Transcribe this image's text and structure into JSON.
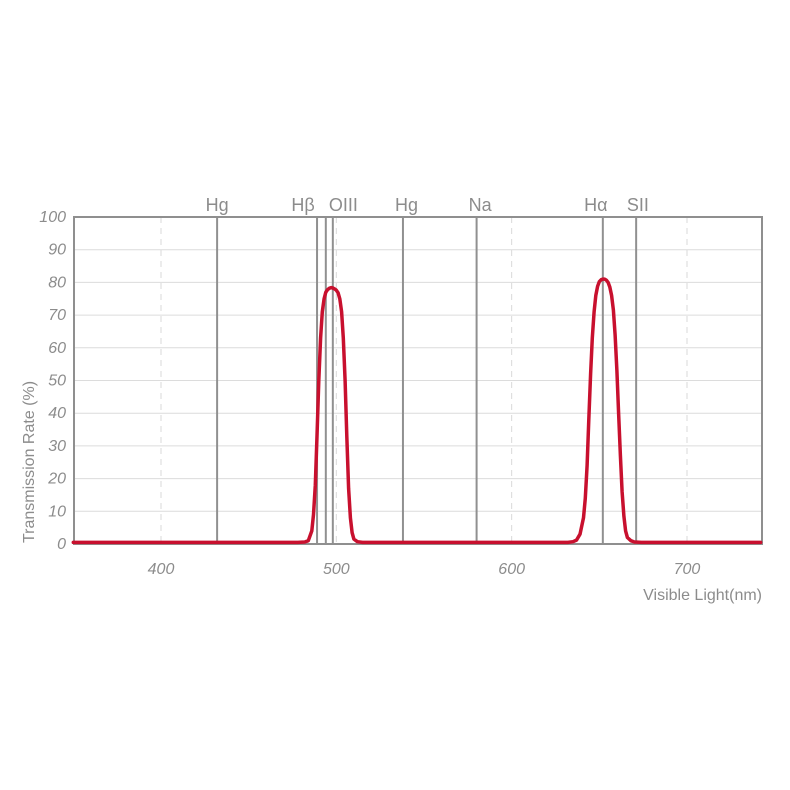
{
  "chart_data": {
    "type": "line",
    "title": "",
    "xlabel": "Visible Light(nm)",
    "ylabel": "Transmission Rate (%)",
    "xlim": [
      350,
      742
    ],
    "ylim": [
      0,
      100
    ],
    "x_ticks": [
      400,
      500,
      600,
      700
    ],
    "y_ticks": [
      0,
      10,
      20,
      30,
      40,
      50,
      60,
      70,
      80,
      90,
      100
    ],
    "grid": "on",
    "legend": "none",
    "colors": {
      "curve": "#c8102e",
      "axis_border": "#8f8f8f",
      "emission_line": "#909090",
      "gridline": "#dcdcdc",
      "dashed_gridline": "#d9d9d9",
      "text": "#8c8c8c",
      "background": "#ffffff"
    },
    "emission_lines": [
      {
        "label": "Hg",
        "lines_nm": [
          432
        ],
        "label_nm": 432
      },
      {
        "label": "Hβ",
        "lines_nm": [
          489
        ],
        "label_nm": 481
      },
      {
        "label": "OIII",
        "lines_nm": [
          494,
          498
        ],
        "label_nm": 504
      },
      {
        "label": "Hg",
        "lines_nm": [
          538
        ],
        "label_nm": 540
      },
      {
        "label": "Na",
        "lines_nm": [
          580
        ],
        "label_nm": 582
      },
      {
        "label": "Hα",
        "lines_nm": [
          652
        ],
        "label_nm": 648
      },
      {
        "label": "SII",
        "lines_nm": [
          671
        ],
        "label_nm": 672
      }
    ],
    "bands": [
      {
        "name": "OIII passband",
        "center_nm": 497,
        "peak_transmission_pct": 78,
        "approx_base_nm": [
          484,
          510
        ]
      },
      {
        "name": "Hα passband",
        "center_nm": 652,
        "peak_transmission_pct": 81,
        "approx_base_nm": [
          637,
          668
        ]
      }
    ],
    "series": [
      {
        "name": "transmission",
        "color": "#c8102e",
        "points": [
          [
            350,
            0.5
          ],
          [
            420,
            0.5
          ],
          [
            460,
            0.5
          ],
          [
            478,
            0.5
          ],
          [
            482,
            0.6
          ],
          [
            484,
            1
          ],
          [
            486,
            4
          ],
          [
            487,
            9
          ],
          [
            488,
            18
          ],
          [
            489,
            33
          ],
          [
            490,
            50
          ],
          [
            491,
            63
          ],
          [
            492,
            71
          ],
          [
            493,
            75
          ],
          [
            494,
            77
          ],
          [
            495,
            77.8
          ],
          [
            496,
            78.2
          ],
          [
            497,
            78.4
          ],
          [
            498,
            78.3
          ],
          [
            499,
            78
          ],
          [
            500,
            77.6
          ],
          [
            501,
            76.8
          ],
          [
            502,
            75
          ],
          [
            503,
            71
          ],
          [
            504,
            63
          ],
          [
            505,
            50
          ],
          [
            506,
            33
          ],
          [
            507,
            17
          ],
          [
            508,
            8
          ],
          [
            509,
            3.5
          ],
          [
            510,
            1.5
          ],
          [
            512,
            0.7
          ],
          [
            515,
            0.5
          ],
          [
            540,
            0.5
          ],
          [
            580,
            0.5
          ],
          [
            610,
            0.5
          ],
          [
            625,
            0.5
          ],
          [
            632,
            0.5
          ],
          [
            635,
            0.7
          ],
          [
            637,
            1.2
          ],
          [
            639,
            3
          ],
          [
            641,
            8
          ],
          [
            642,
            14
          ],
          [
            643,
            24
          ],
          [
            644,
            38
          ],
          [
            645,
            52
          ],
          [
            646,
            63
          ],
          [
            647,
            71
          ],
          [
            648,
            76
          ],
          [
            649,
            78.8
          ],
          [
            650,
            80.2
          ],
          [
            651,
            80.8
          ],
          [
            652,
            81
          ],
          [
            653,
            81
          ],
          [
            654,
            80.7
          ],
          [
            655,
            80
          ],
          [
            656,
            78.6
          ],
          [
            657,
            76
          ],
          [
            658,
            71.5
          ],
          [
            659,
            64
          ],
          [
            660,
            53
          ],
          [
            661,
            40
          ],
          [
            662,
            27
          ],
          [
            663,
            16
          ],
          [
            664,
            8.5
          ],
          [
            665,
            4
          ],
          [
            666,
            2
          ],
          [
            668,
            1
          ],
          [
            670,
            0.6
          ],
          [
            674,
            0.5
          ],
          [
            700,
            0.5
          ],
          [
            742,
            0.5
          ]
        ]
      }
    ]
  }
}
